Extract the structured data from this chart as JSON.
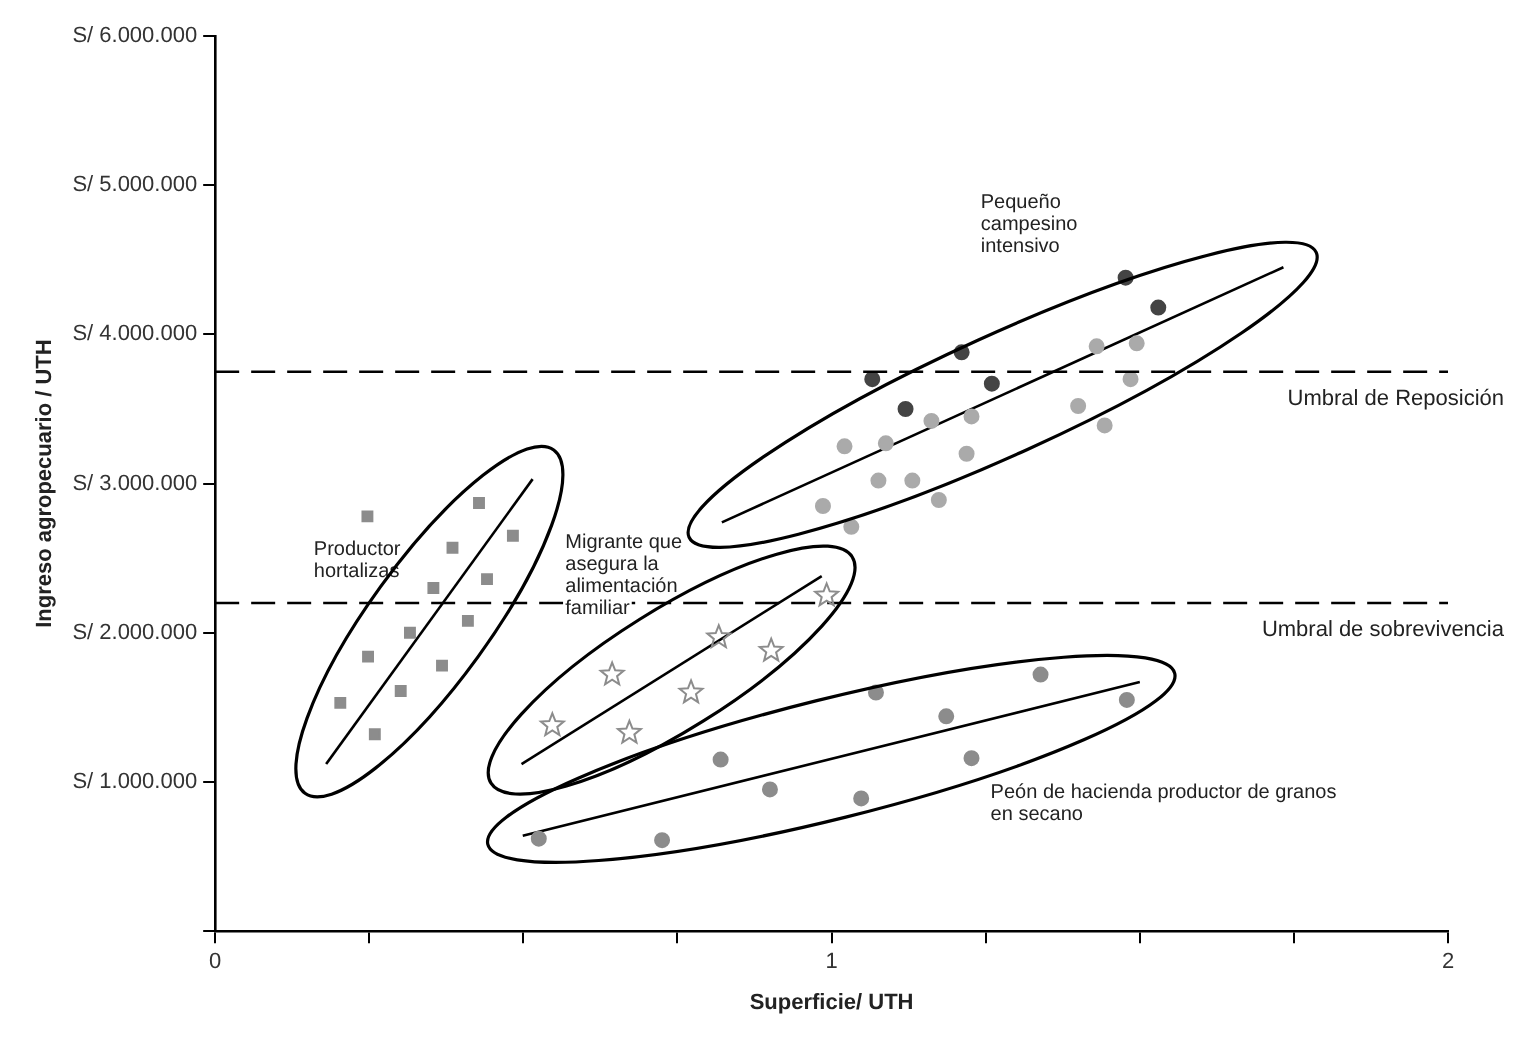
{
  "chart_data": {
    "type": "scatter",
    "xlabel": "Superficie/ UTH",
    "ylabel": "Ingreso agropecuario / UTH",
    "xlim": [
      0,
      2
    ],
    "xticks": [
      0,
      {
        "value": 0.25,
        "label": null
      },
      {
        "value": 0.5,
        "label": null
      },
      {
        "value": 0.75,
        "label": null
      },
      1,
      {
        "value": 1.25,
        "label": null
      },
      {
        "value": 1.5,
        "label": null
      },
      {
        "value": 1.75,
        "label": null
      },
      2
    ],
    "ylim": [
      0,
      6000000
    ],
    "yticks": [
      {
        "value": 0,
        "label": null
      },
      {
        "value": 1000000,
        "label": "S/ 1.000.000"
      },
      {
        "value": 2000000,
        "label": "S/ 2.000.000"
      },
      {
        "value": 3000000,
        "label": "S/ 3.000.000"
      },
      {
        "value": 4000000,
        "label": "S/ 4.000.000"
      },
      {
        "value": 5000000,
        "label": "S/ 5.000.000"
      },
      {
        "value": 6000000,
        "label": "S/ 6.000.000"
      }
    ],
    "series": [
      {
        "type": "scatter",
        "marker": "square",
        "color": "#8c8c8c",
        "x": [
          0.247,
          0.428,
          0.385,
          0.483,
          0.441,
          0.354,
          0.41,
          0.316,
          0.248,
          0.368,
          0.301,
          0.203,
          0.259
        ],
        "values": [
          2780000,
          2870000,
          2570000,
          2650000,
          2360000,
          2300000,
          2080000,
          2000000,
          1840000,
          1780000,
          1610000,
          1530000,
          1320000
        ]
      },
      {
        "type": "line",
        "line_style": "solid",
        "color": "#000000",
        "x": [
          0.18,
          0.515
        ],
        "values": [
          1120000,
          3030000
        ]
      },
      {
        "type": "scatter",
        "marker": "star",
        "color": "#8c8c8c",
        "x": [
          0.547,
          0.644,
          0.672,
          0.772,
          0.817,
          0.902,
          0.992
        ],
        "values": [
          1380000,
          1720000,
          1330000,
          1600000,
          1970000,
          1880000,
          2250000
        ]
      },
      {
        "type": "line",
        "line_style": "solid",
        "color": "#000000",
        "x": [
          0.497,
          0.984
        ],
        "values": [
          1120000,
          2380000
        ]
      },
      {
        "type": "scatter",
        "marker": "circle",
        "color": "#8c8c8c",
        "x": [
          0.525,
          0.725,
          0.82,
          0.9,
          1.048,
          1.072,
          1.186,
          1.227,
          1.339,
          1.479
        ],
        "values": [
          620000,
          610000,
          1150000,
          950000,
          890000,
          1600000,
          1440000,
          1160000,
          1720000,
          1550000
        ]
      },
      {
        "type": "line",
        "line_style": "solid",
        "color": "#000000",
        "x": [
          0.499,
          1.5
        ],
        "values": [
          640000,
          1670000
        ]
      },
      {
        "type": "scatter",
        "marker": "circle",
        "color": "#444444",
        "x": [
          1.477,
          1.53,
          1.211,
          1.066,
          1.26,
          1.12
        ],
        "values": [
          4380000,
          4180000,
          3880000,
          3700000,
          3670000,
          3500000
        ]
      },
      {
        "type": "scatter",
        "marker": "circle",
        "color": "#aaaaaa",
        "x": [
          1.43,
          1.495,
          1.485,
          1.4,
          1.443,
          1.162,
          1.227,
          1.021,
          1.088,
          1.219,
          1.076,
          1.131,
          1.174,
          0.986,
          1.032
        ],
        "values": [
          3920000,
          3940000,
          3700000,
          3520000,
          3390000,
          3420000,
          3450000,
          3250000,
          3270000,
          3200000,
          3020000,
          3020000,
          2890000,
          2850000,
          2710000
        ]
      },
      {
        "type": "line",
        "line_style": "solid",
        "color": "#000000",
        "x": [
          0.822,
          1.733
        ],
        "values": [
          2740000,
          4450000
        ]
      }
    ],
    "ref_lines": [
      {
        "axis": "y",
        "value": 3750000,
        "label": "Umbral de Reposición",
        "line_style": "dashed",
        "color": "#000000"
      },
      {
        "axis": "y",
        "value": 2200000,
        "label": "Umbral de sobrevivencia",
        "line_style": "dashed",
        "color": "#000000"
      }
    ],
    "annotations": [
      "Productor hortalizas",
      "Migrante que asegura la alimentación familiar",
      "Pequeño campesino intensivo",
      "Peón de hacienda productor de granos en secano"
    ]
  }
}
